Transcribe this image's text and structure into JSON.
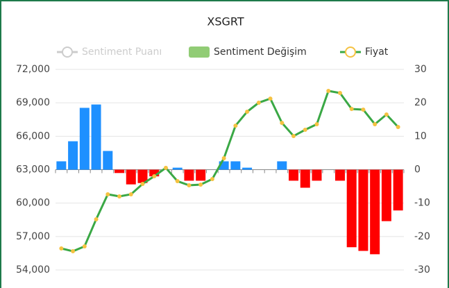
{
  "chart_data": {
    "type": "bar-line",
    "title": "XSGRT",
    "series": [
      {
        "name": "Sentiment Puanı",
        "color": "#cccccc",
        "visible": false
      },
      {
        "name": "Sentiment Değişim",
        "type": "bar",
        "axis": "y2",
        "color": "#91cc75",
        "positive_color": "#1e90ff",
        "negative_color": "#ff0000",
        "values": [
          2.5,
          8.5,
          18.5,
          19.5,
          5.6,
          -1,
          -4.4,
          -4,
          -2,
          0,
          0.6,
          -3.3,
          -3.3,
          0,
          2.5,
          2.5,
          0.6,
          0,
          0,
          2.5,
          -3.3,
          -5.4,
          -3.3,
          0,
          -3.3,
          -23.2,
          -24.3,
          -25.3,
          -15.4,
          -12.2
        ]
      },
      {
        "name": "Fiyat",
        "type": "line",
        "color": "#3aa845",
        "marker_color": "#f5c242",
        "values": [
          55930,
          55680,
          56120,
          58550,
          60790,
          60600,
          60790,
          61720,
          62410,
          63160,
          61970,
          61600,
          61660,
          62160,
          64030,
          66950,
          68200,
          69010,
          69380,
          67200,
          66020,
          66580,
          67080,
          70070,
          69880,
          68450,
          68390,
          67080,
          67950,
          66830
        ]
      }
    ],
    "ylim": [
      54000,
      72000
    ],
    "yticks": [
      {
        "value": 54000,
        "label": "54,000"
      },
      {
        "value": 57000,
        "label": "57,000"
      },
      {
        "value": 60000,
        "label": "60,000"
      },
      {
        "value": 63000,
        "label": "63,000"
      },
      {
        "value": 66000,
        "label": "66,000"
      },
      {
        "value": 69000,
        "label": "69,000"
      },
      {
        "value": 72000,
        "label": "72,000"
      }
    ],
    "y2lim": [
      -30,
      30
    ],
    "y2ticks": [
      -30,
      -20,
      -10,
      0,
      10,
      20,
      30
    ],
    "grid": true
  }
}
